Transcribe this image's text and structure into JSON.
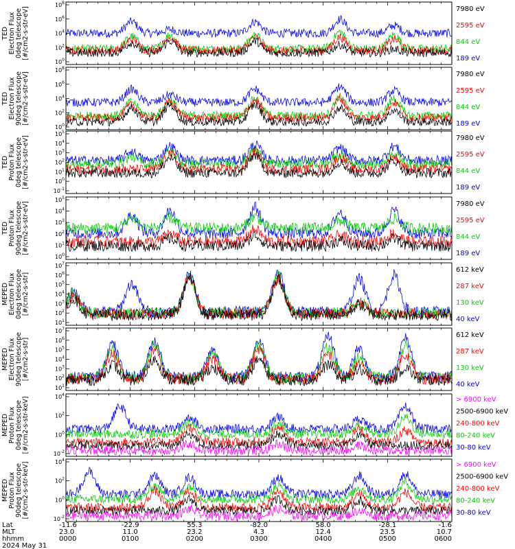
{
  "chart_data": [
    {
      "type": "line",
      "ylabel": [
        "TED",
        "Electron Flux",
        "0deg telescope",
        "[#/cm2-s-str-eV]"
      ],
      "yticks": [
        "10^8",
        "10^6",
        "10^4",
        "10^2",
        "10^0"
      ],
      "ylim_log10": [
        0,
        8
      ],
      "series": [
        {
          "name": "7980 eV",
          "color": "#000000",
          "background": 1.5,
          "peaks": [
            [
              0.17,
              2.8
            ],
            [
              0.27,
              3.0
            ],
            [
              0.49,
              3.0
            ],
            [
              0.71,
              2.5
            ],
            [
              0.85,
              2.0
            ]
          ]
        },
        {
          "name": "2595 eV",
          "color": "#ff0000",
          "background": 1.8,
          "peaks": [
            [
              0.17,
              3.2
            ],
            [
              0.27,
              3.5
            ],
            [
              0.49,
              3.5
            ],
            [
              0.71,
              3.5
            ],
            [
              0.85,
              3.2
            ]
          ]
        },
        {
          "name": "844 eV",
          "color": "#00cc00",
          "background": 2.0,
          "peaks": [
            [
              0.17,
              3.6
            ],
            [
              0.27,
              3.8
            ],
            [
              0.49,
              3.8
            ],
            [
              0.71,
              4.2
            ],
            [
              0.85,
              3.8
            ]
          ]
        },
        {
          "name": "189 eV",
          "color": "#0000ff",
          "background": 4.0,
          "peaks": [
            [
              0.17,
              5.5
            ],
            [
              0.27,
              4.5
            ],
            [
              0.49,
              5.5
            ],
            [
              0.71,
              5.8
            ],
            [
              0.85,
              5.0
            ]
          ]
        }
      ]
    },
    {
      "type": "line",
      "ylabel": [
        "TED",
        "Electron Flux",
        "90deg telescope",
        "[#/cm2-s-str-eV]"
      ],
      "yticks": [
        "10^8",
        "10^6",
        "10^4",
        "10^2",
        "10^0"
      ],
      "ylim_log10": [
        0,
        8
      ],
      "series": [
        {
          "name": "7980 eV",
          "color": "#000000",
          "background": 1.0,
          "peaks": [
            [
              0.17,
              2.8
            ],
            [
              0.27,
              3.2
            ],
            [
              0.49,
              3.2
            ],
            [
              0.71,
              2.8
            ],
            [
              0.85,
              2.5
            ]
          ]
        },
        {
          "name": "2595 eV",
          "color": "#ff0000",
          "background": 1.5,
          "peaks": [
            [
              0.17,
              3.2
            ],
            [
              0.27,
              3.6
            ],
            [
              0.49,
              3.8
            ],
            [
              0.71,
              4.0
            ],
            [
              0.85,
              3.5
            ]
          ]
        },
        {
          "name": "844 eV",
          "color": "#00cc00",
          "background": 1.8,
          "peaks": [
            [
              0.17,
              3.6
            ],
            [
              0.27,
              3.8
            ],
            [
              0.49,
              4.0
            ],
            [
              0.71,
              4.2
            ],
            [
              0.85,
              4.0
            ]
          ]
        },
        {
          "name": "189 eV",
          "color": "#0000ff",
          "background": 3.5,
          "peaks": [
            [
              0.17,
              5.2
            ],
            [
              0.27,
              4.5
            ],
            [
              0.49,
              5.2
            ],
            [
              0.71,
              5.5
            ],
            [
              0.85,
              5.0
            ]
          ]
        }
      ]
    },
    {
      "type": "line",
      "ylabel": [
        "TED",
        "Proton Flux",
        "0deg telescope",
        "[#/cm2-s-str-eV]"
      ],
      "yticks": [
        "10^5",
        "10^4",
        "10^3",
        "10^2",
        "10^1",
        "10^0",
        "10^-1"
      ],
      "ylim_log10": [
        -1.5,
        5.5
      ],
      "series": [
        {
          "name": "7980 eV",
          "color": "#000000",
          "background": 0.8,
          "peaks": [
            [
              0.27,
              2.5
            ],
            [
              0.49,
              2.8
            ],
            [
              0.71,
              2.0
            ],
            [
              0.85,
              2.2
            ]
          ]
        },
        {
          "name": "2595 eV",
          "color": "#ff0000",
          "background": 1.2,
          "peaks": [
            [
              0.27,
              3.0
            ],
            [
              0.49,
              3.2
            ],
            [
              0.71,
              2.6
            ],
            [
              0.85,
              2.6
            ]
          ]
        },
        {
          "name": "844 eV",
          "color": "#00cc00",
          "background": 1.8,
          "peaks": [
            [
              0.17,
              2.6
            ],
            [
              0.27,
              3.2
            ],
            [
              0.49,
              3.4
            ],
            [
              0.71,
              2.8
            ],
            [
              0.85,
              3.0
            ]
          ]
        },
        {
          "name": "189 eV",
          "color": "#0000ff",
          "background": 2.2,
          "peaks": [
            [
              0.17,
              3.2
            ],
            [
              0.27,
              3.8
            ],
            [
              0.49,
              4.0
            ],
            [
              0.71,
              3.6
            ],
            [
              0.85,
              3.8
            ]
          ]
        }
      ]
    },
    {
      "type": "line",
      "ylabel": [
        "TED",
        "Proton Flux",
        "90deg telescope",
        "[#/cm2-s-str-eV]"
      ],
      "yticks": [
        "10^5",
        "10^4",
        "10^3",
        "10^2",
        "10^1",
        "10^0"
      ],
      "ylim_log10": [
        -0.5,
        5.5
      ],
      "series": [
        {
          "name": "7980 eV",
          "color": "#000000",
          "background": 0.8,
          "peaks": [
            [
              0.27,
              1.5
            ],
            [
              0.49,
              1.8
            ],
            [
              0.71,
              1.3
            ],
            [
              0.85,
              1.5
            ]
          ]
        },
        {
          "name": "2595 eV",
          "color": "#ff0000",
          "background": 1.2,
          "peaks": [
            [
              0.27,
              2.0
            ],
            [
              0.49,
              2.4
            ],
            [
              0.71,
              1.8
            ],
            [
              0.85,
              2.0
            ]
          ]
        },
        {
          "name": "844 eV",
          "color": "#00cc00",
          "background": 2.5,
          "peaks": [
            [
              0.17,
              3.5
            ],
            [
              0.27,
              3.5
            ],
            [
              0.49,
              3.6
            ],
            [
              0.71,
              3.2
            ],
            [
              0.85,
              3.4
            ]
          ]
        },
        {
          "name": "189 eV",
          "color": "#0000ff",
          "background": 2.0,
          "peaks": [
            [
              0.17,
              3.8
            ],
            [
              0.27,
              4.2
            ],
            [
              0.49,
              4.5
            ],
            [
              0.71,
              4.0
            ],
            [
              0.85,
              4.2
            ]
          ]
        }
      ]
    },
    {
      "type": "line",
      "ylabel": [
        "MEPED",
        "Electron Flux",
        "0deg telescope",
        "[#/cm2-s-str]"
      ],
      "yticks": [
        "10^7",
        "10^6",
        "10^5",
        "10^4",
        "10^3",
        "10^2",
        "10^1"
      ],
      "ylim_log10": [
        1,
        7
      ],
      "series": [
        {
          "name": "612 keV",
          "color": "#000000",
          "background": 2.0,
          "peaks": [
            [
              0.02,
              3.5
            ],
            [
              0.32,
              5.5
            ],
            [
              0.55,
              5.5
            ],
            [
              0.76,
              3.0
            ]
          ]
        },
        {
          "name": "287 keV",
          "color": "#ff0000",
          "background": 2.1,
          "peaks": [
            [
              0.02,
              3.8
            ],
            [
              0.32,
              5.6
            ],
            [
              0.55,
              5.6
            ],
            [
              0.76,
              3.2
            ]
          ]
        },
        {
          "name": "130 keV",
          "color": "#00cc00",
          "background": 2.2,
          "peaks": [
            [
              0.02,
              4.0
            ],
            [
              0.32,
              5.7
            ],
            [
              0.55,
              5.8
            ],
            [
              0.76,
              3.3
            ]
          ]
        },
        {
          "name": "40 keV",
          "color": "#0000ff",
          "background": 2.3,
          "peaks": [
            [
              0.02,
              4.2
            ],
            [
              0.17,
              5.0
            ],
            [
              0.32,
              5.8
            ],
            [
              0.55,
              6.0
            ],
            [
              0.76,
              5.5
            ],
            [
              0.85,
              5.8
            ]
          ]
        }
      ]
    },
    {
      "type": "line",
      "ylabel": [
        "MEPED",
        "Electron Flux",
        "90deg telescope",
        "[#/cm2-s-str]"
      ],
      "yticks": [
        "10^7",
        "10^6",
        "10^5",
        "10^4",
        "10^3",
        "10^2",
        "10^1"
      ],
      "ylim_log10": [
        1,
        7
      ],
      "series": [
        {
          "name": "612 keV",
          "color": "#000000",
          "background": 2.0,
          "peaks": [
            [
              0.12,
              3.5
            ],
            [
              0.23,
              4.0
            ],
            [
              0.38,
              3.2
            ],
            [
              0.5,
              4.0
            ],
            [
              0.68,
              3.5
            ],
            [
              0.76,
              3.0
            ],
            [
              0.88,
              3.2
            ]
          ]
        },
        {
          "name": "287 keV",
          "color": "#ff0000",
          "background": 2.1,
          "peaks": [
            [
              0.12,
              4.5
            ],
            [
              0.23,
              5.0
            ],
            [
              0.38,
              4.0
            ],
            [
              0.5,
              5.0
            ],
            [
              0.68,
              4.5
            ],
            [
              0.76,
              3.5
            ],
            [
              0.88,
              4.5
            ]
          ]
        },
        {
          "name": "130 keV",
          "color": "#00cc00",
          "background": 2.2,
          "peaks": [
            [
              0.12,
              5.0
            ],
            [
              0.23,
              5.5
            ],
            [
              0.38,
              4.5
            ],
            [
              0.5,
              5.4
            ],
            [
              0.68,
              5.2
            ],
            [
              0.76,
              4.2
            ],
            [
              0.88,
              5.2
            ]
          ]
        },
        {
          "name": "40 keV",
          "color": "#0000ff",
          "background": 2.3,
          "peaks": [
            [
              0.12,
              5.5
            ],
            [
              0.23,
              5.8
            ],
            [
              0.38,
              4.8
            ],
            [
              0.5,
              5.8
            ],
            [
              0.68,
              6.2
            ],
            [
              0.76,
              5.0
            ],
            [
              0.88,
              6.0
            ]
          ]
        }
      ]
    },
    {
      "type": "line",
      "ylabel": [
        "MEPED",
        "Proton Flux",
        "0deg telescope",
        "[#/cm2-s-str-keV]"
      ],
      "yticks": [
        "10^4",
        "10^2",
        "10^0",
        "10^-2"
      ],
      "ylim_log10": [
        -2.5,
        5
      ],
      "series": [
        {
          "name": "> 6900 keV",
          "color": "#ff00ff",
          "background": -1.8,
          "peaks": [
            [
              0.32,
              -1.0
            ],
            [
              0.55,
              -1.0
            ],
            [
              0.76,
              -1.2
            ]
          ]
        },
        {
          "name": "2500-6900 keV",
          "color": "#000000",
          "background": -1.2,
          "peaks": [
            [
              0.32,
              0.2
            ],
            [
              0.55,
              0.2
            ],
            [
              0.76,
              0.0
            ]
          ]
        },
        {
          "name": "240-800 keV",
          "color": "#ff0000",
          "background": -0.8,
          "peaks": [
            [
              0.32,
              1.0
            ],
            [
              0.55,
              1.0
            ],
            [
              0.76,
              0.8
            ],
            [
              0.88,
              0.6
            ]
          ]
        },
        {
          "name": "80-240 keV",
          "color": "#00cc00",
          "background": 0.2,
          "peaks": [
            [
              0.32,
              1.5
            ],
            [
              0.55,
              1.5
            ],
            [
              0.76,
              1.2
            ],
            [
              0.88,
              2.2
            ]
          ]
        },
        {
          "name": "30-80 keV",
          "color": "#0000ff",
          "background": 0.8,
          "peaks": [
            [
              0.14,
              3.5
            ],
            [
              0.32,
              2.2
            ],
            [
              0.55,
              2.2
            ],
            [
              0.76,
              2.0
            ],
            [
              0.88,
              3.5
            ]
          ]
        }
      ]
    },
    {
      "type": "line",
      "ylabel": [
        "MEPED",
        "Proton Flux",
        "90deg telescope",
        "[#/cm2-s-str-keV]"
      ],
      "yticks": [
        "10^4",
        "10^2",
        "10^0",
        "10^-2"
      ],
      "ylim_log10": [
        -2.5,
        5
      ],
      "series": [
        {
          "name": "> 6900 keV",
          "color": "#ff00ff",
          "background": -1.8,
          "peaks": [
            [
              0.32,
              -1.0
            ],
            [
              0.55,
              -1.0
            ],
            [
              0.76,
              -1.2
            ]
          ]
        },
        {
          "name": "2500-6900 keV",
          "color": "#000000",
          "background": -1.2,
          "peaks": [
            [
              0.32,
              0.2
            ],
            [
              0.55,
              0.2
            ],
            [
              0.76,
              0.0
            ]
          ]
        },
        {
          "name": "240-800 keV",
          "color": "#ff0000",
          "background": -0.8,
          "peaks": [
            [
              0.23,
              1.2
            ],
            [
              0.32,
              1.2
            ],
            [
              0.55,
              1.2
            ],
            [
              0.76,
              0.8
            ],
            [
              0.88,
              1.0
            ]
          ]
        },
        {
          "name": "80-240 keV",
          "color": "#00cc00",
          "background": 0.2,
          "peaks": [
            [
              0.23,
              1.8
            ],
            [
              0.32,
              1.8
            ],
            [
              0.55,
              1.8
            ],
            [
              0.76,
              1.6
            ],
            [
              0.88,
              2.2
            ]
          ]
        },
        {
          "name": "30-80 keV",
          "color": "#0000ff",
          "background": 0.8,
          "peaks": [
            [
              0.06,
              3.5
            ],
            [
              0.23,
              3.0
            ],
            [
              0.32,
              2.8
            ],
            [
              0.55,
              2.8
            ],
            [
              0.76,
              3.0
            ],
            [
              0.88,
              3.2
            ]
          ]
        }
      ]
    }
  ],
  "footer": {
    "row_labels": [
      "Lat",
      "MLT",
      "hhmm",
      "2024 May 31"
    ],
    "columns": [
      {
        "lat": "-11.6",
        "mlt": "23.0",
        "hhmm": "0000"
      },
      {
        "lat": "-22.9",
        "mlt": "11.0",
        "hhmm": "0100"
      },
      {
        "lat": "55.3",
        "mlt": "23.2",
        "hhmm": "0200"
      },
      {
        "lat": "-82.0",
        "mlt": "4.3",
        "hhmm": "0300"
      },
      {
        "lat": "58.0",
        "mlt": "12.4",
        "hhmm": "0400"
      },
      {
        "lat": "-28.1",
        "mlt": "23.5",
        "hhmm": "0500"
      },
      {
        "lat": "-1.6",
        "mlt": "10.7",
        "hhmm": "0600"
      }
    ]
  }
}
